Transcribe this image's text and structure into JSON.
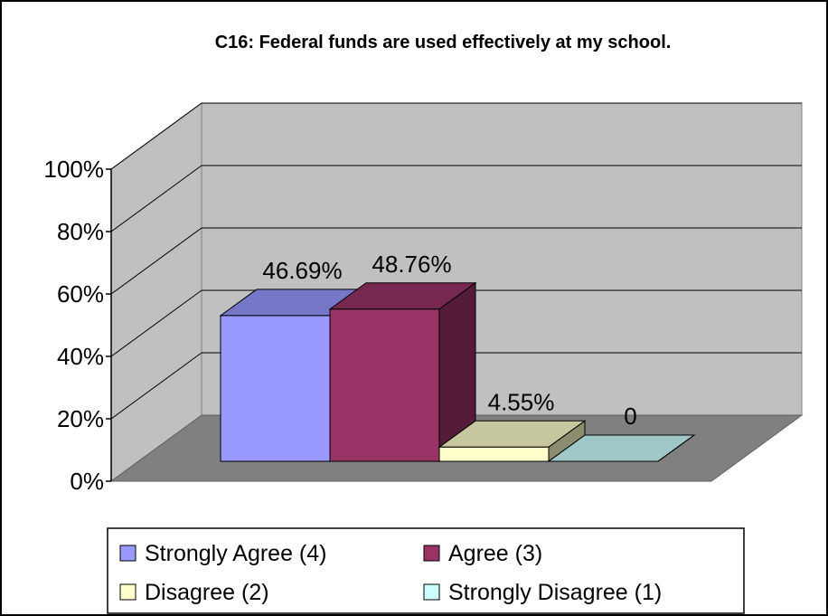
{
  "chart_data": {
    "type": "bar",
    "title": "C16: Federal funds are used effectively at my school.",
    "categories": [
      "Strongly Agree (4)",
      "Agree (3)",
      "Disagree (2)",
      "Strongly Disagree (1)"
    ],
    "values": [
      46.69,
      48.76,
      4.55,
      0
    ],
    "data_labels": [
      "46.69%",
      "48.76%",
      "4.55%",
      "0"
    ],
    "y_ticks": [
      "0%",
      "20%",
      "40%",
      "60%",
      "80%",
      "100%"
    ],
    "ylim": [
      0,
      100
    ],
    "grid": true,
    "three_d": true,
    "legend_position": "bottom",
    "colors": {
      "series": [
        "#9999ff",
        "#993366",
        "#ffffcc",
        "#ccffff"
      ],
      "wall": "#c0c0c0",
      "floor": "#808080"
    }
  }
}
